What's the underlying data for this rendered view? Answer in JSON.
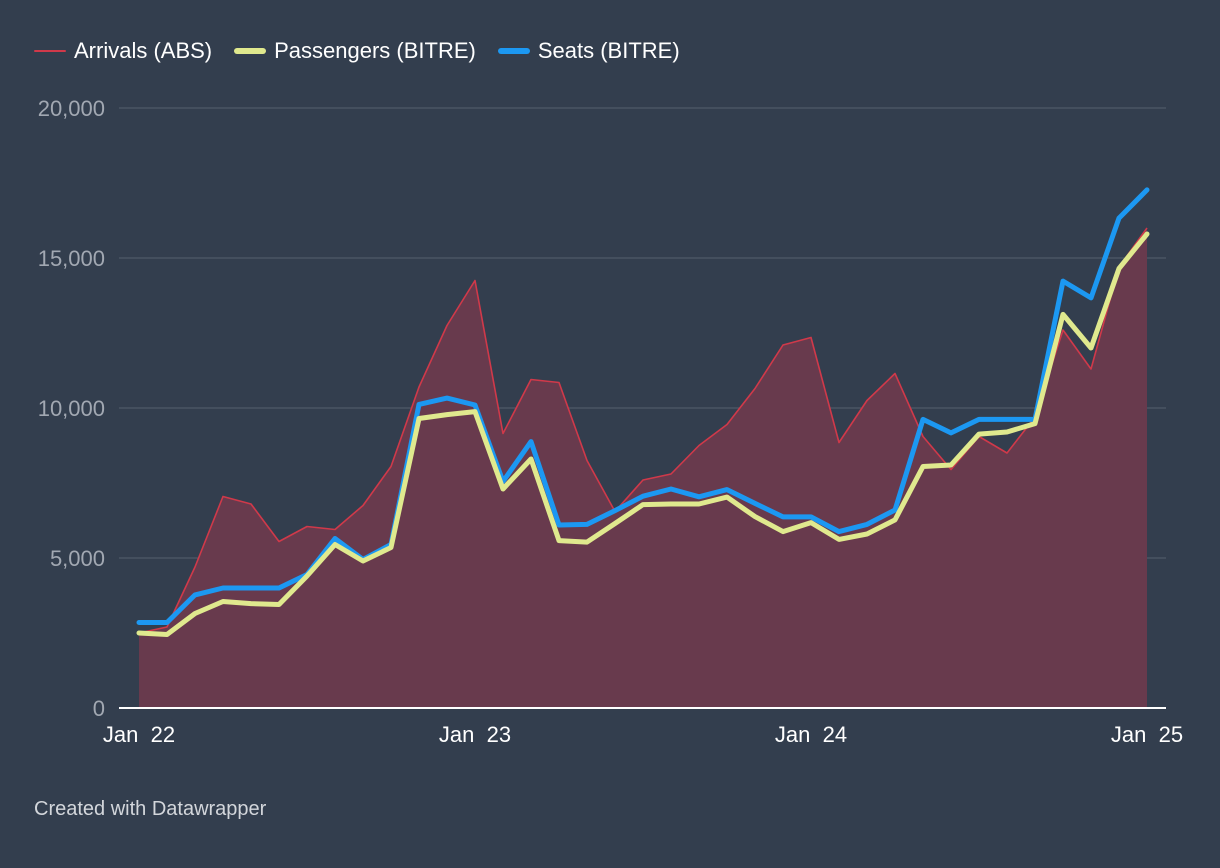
{
  "legend": {
    "items": [
      {
        "label": "Arrivals (ABS)",
        "color": "#d0394a"
      },
      {
        "label": "Passengers (BITRE)",
        "color": "#e0e98e"
      },
      {
        "label": "Seats (BITRE)",
        "color": "#1c98f2"
      }
    ]
  },
  "footer": {
    "text": "Created with Datawrapper"
  },
  "chart_data": {
    "type": "line",
    "x": [
      "2022-01",
      "2022-02",
      "2022-03",
      "2022-04",
      "2022-05",
      "2022-06",
      "2022-07",
      "2022-08",
      "2022-09",
      "2022-10",
      "2022-11",
      "2022-12",
      "2023-01",
      "2023-02",
      "2023-03",
      "2023-04",
      "2023-05",
      "2023-06",
      "2023-07",
      "2023-08",
      "2023-09",
      "2023-10",
      "2023-11",
      "2023-12",
      "2024-01",
      "2024-02",
      "2024-03",
      "2024-04",
      "2024-05",
      "2024-06",
      "2024-07",
      "2024-08",
      "2024-09",
      "2024-10",
      "2024-11",
      "2024-12",
      "2025-01"
    ],
    "x_ticks": [
      {
        "index": 0,
        "label": "Jan  22"
      },
      {
        "index": 12,
        "label": "Jan  23"
      },
      {
        "index": 24,
        "label": "Jan  24"
      },
      {
        "index": 36,
        "label": "Jan  25"
      }
    ],
    "ylim": [
      0,
      20000
    ],
    "y_ticks": [
      {
        "value": 0,
        "label": "0"
      },
      {
        "value": 5000,
        "label": "5,000"
      },
      {
        "value": 10000,
        "label": "10,000"
      },
      {
        "value": 15000,
        "label": "15,000"
      },
      {
        "value": 20000,
        "label": "20,000"
      }
    ],
    "grid": true,
    "legend_position": "top-left",
    "series": [
      {
        "name": "Arrivals (ABS)",
        "style": "area",
        "color": "#d0394a",
        "values": [
          2500,
          2700,
          4700,
          7050,
          6800,
          5550,
          6050,
          5950,
          6750,
          8050,
          10700,
          12750,
          14250,
          9150,
          10950,
          10850,
          8250,
          6550,
          7600,
          7800,
          8750,
          9450,
          10650,
          12100,
          12350,
          8850,
          10250,
          11150,
          9050,
          7950,
          9050,
          8500,
          9700,
          12600,
          11300,
          14700,
          16000
        ]
      },
      {
        "name": "Passengers (BITRE)",
        "style": "line",
        "color": "#e0e98e",
        "values": [
          2500,
          2450,
          3150,
          3550,
          3480,
          3450,
          4400,
          5450,
          4900,
          5350,
          9650,
          9780,
          9880,
          7300,
          8300,
          5580,
          5530,
          6150,
          6780,
          6800,
          6800,
          7030,
          6380,
          5880,
          6180,
          5620,
          5800,
          6270,
          8050,
          8100,
          9130,
          9200,
          9480,
          13120,
          12000,
          14650,
          15800
        ]
      },
      {
        "name": "Seats (BITRE)",
        "style": "line",
        "color": "#1c98f2",
        "values": [
          2850,
          2850,
          3770,
          4000,
          4000,
          4000,
          4450,
          5650,
          4950,
          5450,
          10120,
          10330,
          10100,
          7550,
          8880,
          6100,
          6120,
          6580,
          7060,
          7300,
          7040,
          7280,
          6820,
          6370,
          6370,
          5880,
          6120,
          6600,
          9620,
          9170,
          9620,
          9620,
          9620,
          14230,
          13670,
          16330,
          17270
        ]
      }
    ]
  }
}
